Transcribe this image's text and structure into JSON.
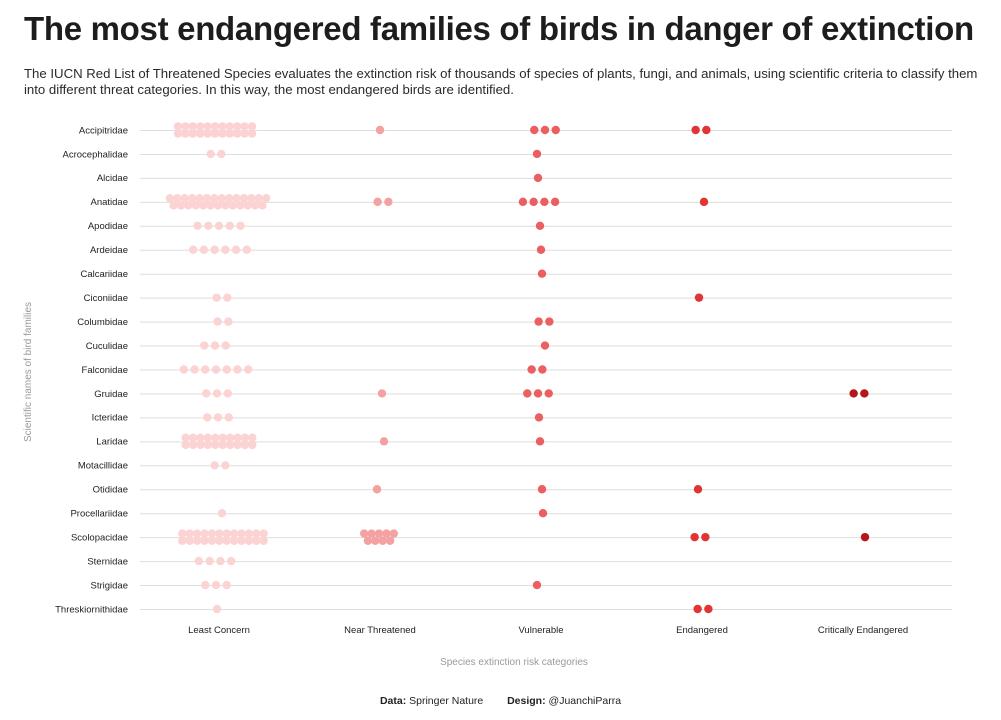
{
  "title": "The most endangered families of birds in danger of extinction",
  "subtitle": "The IUCN Red List of Threatened Species evaluates the extinction risk of thousands of species of plants, fungi, and animals, using scientific criteria to classify them into different threat categories. In this way, the most endangered birds are identified.",
  "footer": {
    "data_label": "Data:",
    "data_value": "Springer Nature",
    "design_label": "Design:",
    "design_value": "@JuanchiParra"
  },
  "chart_data": {
    "type": "scatter",
    "xlabel": "Species extinction risk categories",
    "ylabel": "Scientific names of bird families",
    "categories": [
      "Least Concern",
      "Near Threatened",
      "Vulnerable",
      "Endangered",
      "Critically Endangered"
    ],
    "category_colors": [
      "#fcd3d3",
      "#f4a1a1",
      "#ec5f60",
      "#e03435",
      "#b3161b"
    ],
    "grid": "horizontal",
    "families": [
      "Accipitridae",
      "Acrocephalidae",
      "Alcidae",
      "Anatidae",
      "Apodidae",
      "Ardeidae",
      "Calcariidae",
      "Ciconiidae",
      "Columbidae",
      "Cuculidae",
      "Falconidae",
      "Gruidae",
      "Icteridae",
      "Laridae",
      "Motacillidae",
      "Otididae",
      "Procellariidae",
      "Scolopacidae",
      "Sternidae",
      "Strigidae",
      "Threskiornithidae"
    ],
    "species_counts": [
      {
        "family": "Accipitridae",
        "counts": [
          22,
          1,
          3,
          2,
          0
        ]
      },
      {
        "family": "Acrocephalidae",
        "counts": [
          2,
          0,
          1,
          0,
          0
        ]
      },
      {
        "family": "Alcidae",
        "counts": [
          0,
          0,
          1,
          0,
          0
        ]
      },
      {
        "family": "Anatidae",
        "counts": [
          27,
          2,
          4,
          1,
          0
        ]
      },
      {
        "family": "Apodidae",
        "counts": [
          5,
          0,
          1,
          0,
          0
        ]
      },
      {
        "family": "Ardeidae",
        "counts": [
          6,
          0,
          1,
          0,
          0
        ]
      },
      {
        "family": "Calcariidae",
        "counts": [
          0,
          0,
          1,
          0,
          0
        ]
      },
      {
        "family": "Ciconiidae",
        "counts": [
          2,
          0,
          0,
          1,
          0
        ]
      },
      {
        "family": "Columbidae",
        "counts": [
          2,
          0,
          2,
          0,
          0
        ]
      },
      {
        "family": "Cuculidae",
        "counts": [
          3,
          0,
          1,
          0,
          0
        ]
      },
      {
        "family": "Falconidae",
        "counts": [
          7,
          0,
          2,
          0,
          0
        ]
      },
      {
        "family": "Gruidae",
        "counts": [
          3,
          1,
          3,
          0,
          2
        ]
      },
      {
        "family": "Icteridae",
        "counts": [
          3,
          0,
          1,
          0,
          0
        ]
      },
      {
        "family": "Laridae",
        "counts": [
          20,
          1,
          1,
          0,
          0
        ]
      },
      {
        "family": "Motacillidae",
        "counts": [
          2,
          0,
          0,
          0,
          0
        ]
      },
      {
        "family": "Otididae",
        "counts": [
          0,
          1,
          1,
          1,
          0
        ]
      },
      {
        "family": "Procellariidae",
        "counts": [
          1,
          0,
          1,
          0,
          0
        ]
      },
      {
        "family": "Scolopacidae",
        "counts": [
          24,
          9,
          0,
          2,
          1
        ]
      },
      {
        "family": "Sternidae",
        "counts": [
          4,
          0,
          0,
          0,
          0
        ]
      },
      {
        "family": "Strigidae",
        "counts": [
          3,
          0,
          1,
          0,
          0
        ]
      },
      {
        "family": "Threskiornithidae",
        "counts": [
          1,
          0,
          0,
          2,
          0
        ]
      }
    ]
  }
}
